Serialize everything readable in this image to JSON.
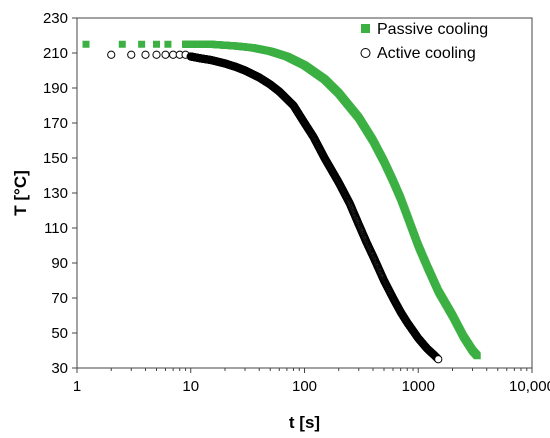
{
  "chart_data": {
    "type": "scatter",
    "xlabel": "t [s]",
    "ylabel": "T [°C]",
    "x_scale": "log",
    "xlim": [
      1,
      10000
    ],
    "ylim": [
      30,
      230
    ],
    "x_ticks": [
      1,
      10,
      100,
      1000,
      10000
    ],
    "x_tick_labels": [
      "1",
      "10",
      "100",
      "1000",
      "10,000"
    ],
    "y_ticks": [
      30,
      50,
      70,
      90,
      110,
      130,
      150,
      170,
      190,
      210,
      230
    ],
    "y_tick_labels": [
      "30",
      "50",
      "70",
      "90",
      "110",
      "130",
      "150",
      "170",
      "190",
      "210",
      "230"
    ],
    "grid": false,
    "legend": "top-right",
    "series": [
      {
        "name": "Passive cooling",
        "marker": "filled-square",
        "color": "#3cb043",
        "points": [
          [
            1.2,
            215
          ],
          [
            2.5,
            215
          ],
          [
            3.7,
            215
          ],
          [
            5,
            215
          ],
          [
            6.3,
            215
          ],
          [
            9,
            215
          ],
          [
            15,
            215
          ],
          [
            25,
            214
          ],
          [
            35,
            213
          ],
          [
            50,
            211
          ],
          [
            70,
            208
          ],
          [
            100,
            203
          ],
          [
            150,
            195
          ],
          [
            200,
            187
          ],
          [
            300,
            173
          ],
          [
            400,
            160
          ],
          [
            500,
            148
          ],
          [
            600,
            137
          ],
          [
            700,
            127
          ],
          [
            800,
            117
          ],
          [
            900,
            108
          ],
          [
            1000,
            100
          ],
          [
            1200,
            88
          ],
          [
            1500,
            74
          ],
          [
            2000,
            60
          ],
          [
            2500,
            48
          ],
          [
            3000,
            40
          ],
          [
            3300,
            37
          ]
        ]
      },
      {
        "name": "Active cooling",
        "marker": "open-circle",
        "color": "#000000",
        "points": [
          [
            2,
            209
          ],
          [
            3,
            209
          ],
          [
            4,
            209
          ],
          [
            5,
            209
          ],
          [
            6,
            209
          ],
          [
            7,
            209
          ],
          [
            8,
            209
          ],
          [
            9,
            209
          ],
          [
            10,
            208
          ],
          [
            12,
            207
          ],
          [
            15,
            206
          ],
          [
            20,
            204
          ],
          [
            25,
            202
          ],
          [
            30,
            200
          ],
          [
            40,
            196
          ],
          [
            50,
            192
          ],
          [
            60,
            188
          ],
          [
            80,
            180
          ],
          [
            100,
            170
          ],
          [
            120,
            162
          ],
          [
            150,
            150
          ],
          [
            200,
            136
          ],
          [
            250,
            124
          ],
          [
            300,
            112
          ],
          [
            350,
            102
          ],
          [
            400,
            94
          ],
          [
            500,
            80
          ],
          [
            600,
            70
          ],
          [
            700,
            62
          ],
          [
            800,
            56
          ],
          [
            1000,
            47
          ],
          [
            1200,
            41
          ],
          [
            1400,
            37
          ],
          [
            1500,
            35
          ]
        ]
      }
    ]
  }
}
